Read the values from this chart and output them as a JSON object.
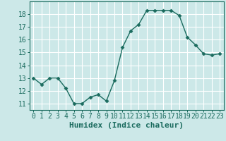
{
  "x": [
    0,
    1,
    2,
    3,
    4,
    5,
    6,
    7,
    8,
    9,
    10,
    11,
    12,
    13,
    14,
    15,
    16,
    17,
    18,
    19,
    20,
    21,
    22,
    23
  ],
  "y": [
    13,
    12.5,
    13,
    13,
    12.2,
    11,
    11,
    11.5,
    11.7,
    11.2,
    12.8,
    15.4,
    16.7,
    17.2,
    18.3,
    18.3,
    18.3,
    18.3,
    17.9,
    16.2,
    15.6,
    14.9,
    14.8,
    14.9
  ],
  "line_color": "#1a6b5e",
  "marker": "D",
  "marker_size": 2.5,
  "bg_color": "#cce8e8",
  "grid_color": "#ffffff",
  "xlabel": "Humidex (Indice chaleur)",
  "xlabel_fontsize": 8,
  "tick_fontsize": 7,
  "ylim": [
    10.5,
    19.0
  ],
  "xlim": [
    -0.5,
    23.5
  ],
  "yticks": [
    11,
    12,
    13,
    14,
    15,
    16,
    17,
    18
  ],
  "xticks": [
    0,
    1,
    2,
    3,
    4,
    5,
    6,
    7,
    8,
    9,
    10,
    11,
    12,
    13,
    14,
    15,
    16,
    17,
    18,
    19,
    20,
    21,
    22,
    23
  ]
}
